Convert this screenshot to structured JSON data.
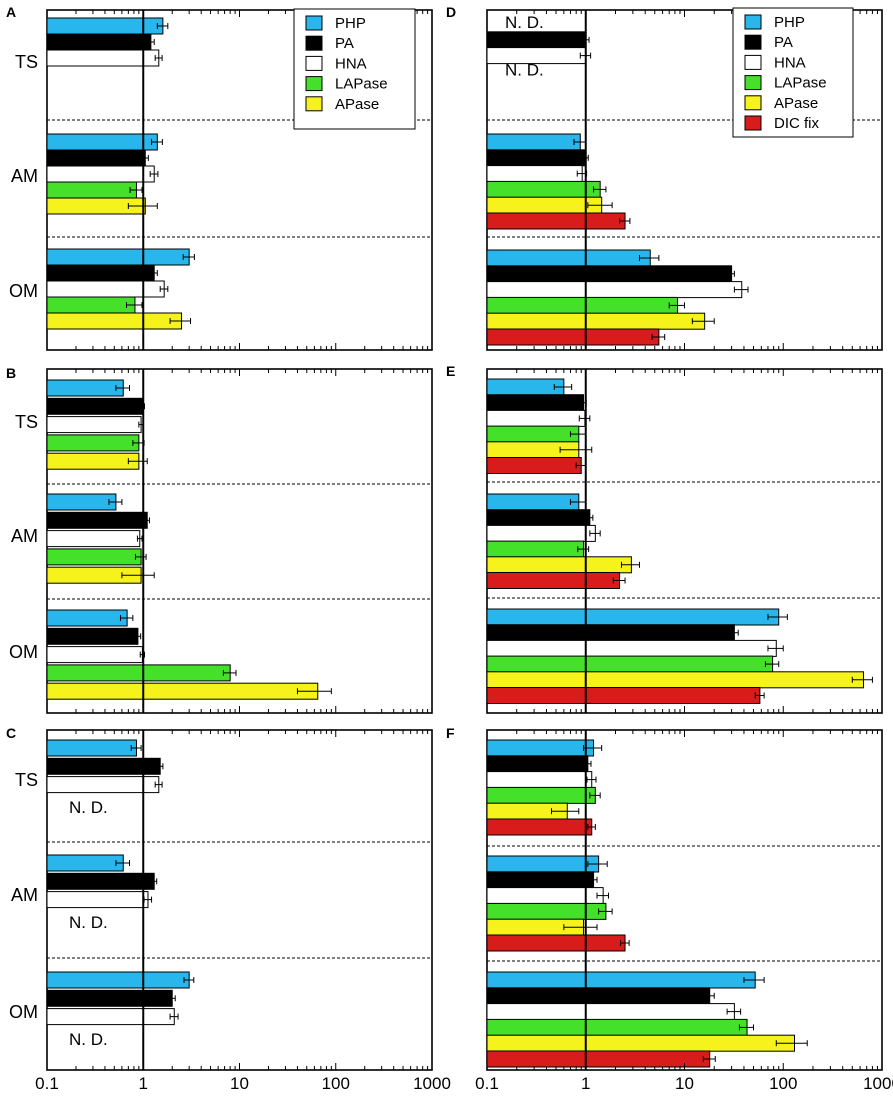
{
  "series": [
    {
      "key": "PHP",
      "name": "PHP",
      "color": "#29b6ec"
    },
    {
      "key": "PA",
      "name": "PA",
      "color": "#000000"
    },
    {
      "key": "HNA",
      "name": "HNA",
      "color": "#ffffff"
    },
    {
      "key": "LAPase",
      "name": "LAPase",
      "color": "#44e02a"
    },
    {
      "key": "APase",
      "name": "APase",
      "color": "#f5f21c"
    },
    {
      "key": "DIC",
      "name": "DIC fix",
      "color": "#d81b1b"
    }
  ],
  "x_ticks": [
    "0.1",
    "1",
    "10",
    "100",
    "1000"
  ],
  "chart_data": [
    {
      "panel": "A",
      "type": "bar",
      "x_scale": "log",
      "xlim": [
        0.1,
        1000
      ],
      "reference_line": 1,
      "legend": [
        "PHP",
        "PA",
        "HNA",
        "LAPase",
        "APase"
      ],
      "groups": [
        {
          "label": "TS",
          "bars": [
            {
              "series": "PHP",
              "value": 1.6,
              "err": 0.2
            },
            {
              "series": "PA",
              "value": 1.2,
              "err": 0.1
            },
            {
              "series": "HNA",
              "value": 1.45,
              "err": 0.12
            }
          ]
        },
        {
          "label": "AM",
          "bars": [
            {
              "series": "PHP",
              "value": 1.4,
              "err": 0.18
            },
            {
              "series": "PA",
              "value": 1.05,
              "err": 0.08
            },
            {
              "series": "HNA",
              "value": 1.3,
              "err": 0.12
            },
            {
              "series": "LAPase",
              "value": 0.85,
              "err": 0.12
            },
            {
              "series": "APase",
              "value": 1.05,
              "err": 0.35
            }
          ]
        },
        {
          "label": "OM",
          "bars": [
            {
              "series": "PHP",
              "value": 3.0,
              "err": 0.4
            },
            {
              "series": "PA",
              "value": 1.3,
              "err": 0.1
            },
            {
              "series": "HNA",
              "value": 1.65,
              "err": 0.15
            },
            {
              "series": "LAPase",
              "value": 0.82,
              "err": 0.15
            },
            {
              "series": "APase",
              "value": 2.5,
              "err": 0.6
            }
          ]
        }
      ]
    },
    {
      "panel": "B",
      "type": "bar",
      "x_scale": "log",
      "xlim": [
        0.1,
        1000
      ],
      "reference_line": 1,
      "groups": [
        {
          "label": "TS",
          "bars": [
            {
              "series": "PHP",
              "value": 0.62,
              "err": 0.1
            },
            {
              "series": "PA",
              "value": 0.98,
              "err": 0.05
            },
            {
              "series": "HNA",
              "value": 0.95,
              "err": 0.05
            },
            {
              "series": "LAPase",
              "value": 0.9,
              "err": 0.12
            },
            {
              "series": "APase",
              "value": 0.9,
              "err": 0.2
            }
          ]
        },
        {
          "label": "AM",
          "bars": [
            {
              "series": "PHP",
              "value": 0.52,
              "err": 0.08
            },
            {
              "series": "PA",
              "value": 1.1,
              "err": 0.06
            },
            {
              "series": "HNA",
              "value": 0.92,
              "err": 0.05
            },
            {
              "series": "LAPase",
              "value": 0.95,
              "err": 0.12
            },
            {
              "series": "APase",
              "value": 0.95,
              "err": 0.35
            }
          ]
        },
        {
          "label": "OM",
          "bars": [
            {
              "series": "PHP",
              "value": 0.68,
              "err": 0.1
            },
            {
              "series": "PA",
              "value": 0.88,
              "err": 0.06
            },
            {
              "series": "HNA",
              "value": 0.98,
              "err": 0.05
            },
            {
              "series": "LAPase",
              "value": 8.0,
              "err": 1.2
            },
            {
              "series": "APase",
              "value": 65,
              "err": 25
            }
          ]
        }
      ]
    },
    {
      "panel": "C",
      "type": "bar",
      "x_scale": "log",
      "xlim": [
        0.1,
        1000
      ],
      "reference_line": 1,
      "groups": [
        {
          "label": "TS",
          "nd": "N. D.",
          "bars": [
            {
              "series": "PHP",
              "value": 0.85,
              "err": 0.1
            },
            {
              "series": "PA",
              "value": 1.5,
              "err": 0.1
            },
            {
              "series": "HNA",
              "value": 1.45,
              "err": 0.12
            }
          ]
        },
        {
          "label": "AM",
          "nd": "N. D.",
          "bars": [
            {
              "series": "PHP",
              "value": 0.62,
              "err": 0.1
            },
            {
              "series": "PA",
              "value": 1.3,
              "err": 0.08
            },
            {
              "series": "HNA",
              "value": 1.12,
              "err": 0.1
            }
          ]
        },
        {
          "label": "OM",
          "nd": "N. D.",
          "bars": [
            {
              "series": "PHP",
              "value": 3.0,
              "err": 0.35
            },
            {
              "series": "PA",
              "value": 2.0,
              "err": 0.15
            },
            {
              "series": "HNA",
              "value": 2.1,
              "err": 0.2
            }
          ]
        }
      ]
    },
    {
      "panel": "D",
      "type": "bar",
      "x_scale": "log",
      "xlim": [
        0.1,
        1000
      ],
      "reference_line": 1,
      "legend": [
        "PHP",
        "PA",
        "HNA",
        "LAPase",
        "APase",
        "DIC"
      ],
      "groups": [
        {
          "label": "",
          "nd_top": "N. D.",
          "nd_bottom": "N. D.",
          "bars": [
            {
              "series": "PA",
              "value": 1.0,
              "err": 0.08
            },
            {
              "series": "HNA",
              "value": 1.0,
              "err": 0.12
            }
          ]
        },
        {
          "label": "",
          "bars": [
            {
              "series": "PHP",
              "value": 0.88,
              "err": 0.12
            },
            {
              "series": "PA",
              "value": 1.0,
              "err": 0.06
            },
            {
              "series": "HNA",
              "value": 0.92,
              "err": 0.1
            },
            {
              "series": "LAPase",
              "value": 1.4,
              "err": 0.2
            },
            {
              "series": "APase",
              "value": 1.45,
              "err": 0.4
            },
            {
              "series": "DIC",
              "value": 2.5,
              "err": 0.3
            }
          ]
        },
        {
          "label": "",
          "bars": [
            {
              "series": "PHP",
              "value": 4.5,
              "err": 1.0
            },
            {
              "series": "PA",
              "value": 30,
              "err": 2.0
            },
            {
              "series": "HNA",
              "value": 38,
              "err": 6.0
            },
            {
              "series": "LAPase",
              "value": 8.5,
              "err": 1.5
            },
            {
              "series": "APase",
              "value": 16,
              "err": 4.0
            },
            {
              "series": "DIC",
              "value": 5.5,
              "err": 0.8
            }
          ]
        }
      ]
    },
    {
      "panel": "E",
      "type": "bar",
      "x_scale": "log",
      "xlim": [
        0.1,
        1000
      ],
      "reference_line": 1,
      "groups": [
        {
          "label": "",
          "bars": [
            {
              "series": "PHP",
              "value": 0.6,
              "err": 0.12
            },
            {
              "series": "PA",
              "value": 0.95,
              "err": 0.06
            },
            {
              "series": "HNA",
              "value": 0.98,
              "err": 0.12
            },
            {
              "series": "LAPase",
              "value": 0.85,
              "err": 0.15
            },
            {
              "series": "APase",
              "value": 0.85,
              "err": 0.3
            },
            {
              "series": "DIC",
              "value": 0.9,
              "err": 0.1
            }
          ]
        },
        {
          "label": "",
          "bars": [
            {
              "series": "PHP",
              "value": 0.85,
              "err": 0.15
            },
            {
              "series": "PA",
              "value": 1.1,
              "err": 0.08
            },
            {
              "series": "HNA",
              "value": 1.25,
              "err": 0.15
            },
            {
              "series": "LAPase",
              "value": 0.95,
              "err": 0.12
            },
            {
              "series": "APase",
              "value": 2.9,
              "err": 0.6
            },
            {
              "series": "DIC",
              "value": 2.2,
              "err": 0.3
            }
          ]
        },
        {
          "label": "",
          "bars": [
            {
              "series": "PHP",
              "value": 90,
              "err": 20
            },
            {
              "series": "PA",
              "value": 32,
              "err": 3
            },
            {
              "series": "HNA",
              "value": 85,
              "err": 15
            },
            {
              "series": "LAPase",
              "value": 78,
              "err": 12
            },
            {
              "series": "APase",
              "value": 650,
              "err": 150
            },
            {
              "series": "DIC",
              "value": 58,
              "err": 6
            }
          ]
        }
      ]
    },
    {
      "panel": "F",
      "type": "bar",
      "x_scale": "log",
      "xlim": [
        0.1,
        1000
      ],
      "reference_line": 1,
      "groups": [
        {
          "label": "",
          "bars": [
            {
              "series": "PHP",
              "value": 1.2,
              "err": 0.25
            },
            {
              "series": "PA",
              "value": 1.05,
              "err": 0.08
            },
            {
              "series": "HNA",
              "value": 1.15,
              "err": 0.12
            },
            {
              "series": "LAPase",
              "value": 1.25,
              "err": 0.15
            },
            {
              "series": "APase",
              "value": 0.65,
              "err": 0.2
            },
            {
              "series": "DIC",
              "value": 1.15,
              "err": 0.1
            }
          ]
        },
        {
          "label": "",
          "bars": [
            {
              "series": "PHP",
              "value": 1.35,
              "err": 0.3
            },
            {
              "series": "PA",
              "value": 1.2,
              "err": 0.1
            },
            {
              "series": "HNA",
              "value": 1.5,
              "err": 0.2
            },
            {
              "series": "LAPase",
              "value": 1.6,
              "err": 0.25
            },
            {
              "series": "APase",
              "value": 0.95,
              "err": 0.35
            },
            {
              "series": "DIC",
              "value": 2.5,
              "err": 0.25
            }
          ]
        },
        {
          "label": "",
          "bars": [
            {
              "series": "PHP",
              "value": 52,
              "err": 12
            },
            {
              "series": "PA",
              "value": 18,
              "err": 2
            },
            {
              "series": "HNA",
              "value": 32,
              "err": 5
            },
            {
              "series": "LAPase",
              "value": 43,
              "err": 7
            },
            {
              "series": "APase",
              "value": 130,
              "err": 45
            },
            {
              "series": "DIC",
              "value": 18,
              "err": 2.5
            }
          ]
        }
      ]
    }
  ]
}
